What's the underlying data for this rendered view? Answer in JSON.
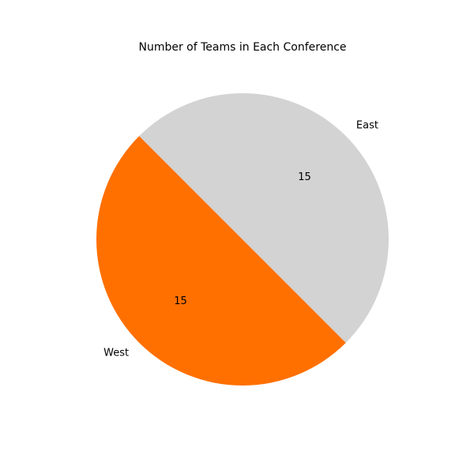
{
  "chart_data": {
    "type": "pie",
    "title": "Number of Teams in Each Conference",
    "categories": [
      "West",
      "East"
    ],
    "values": [
      15,
      15
    ],
    "value_labels": [
      "15",
      "15"
    ],
    "colors": [
      "#ff7000",
      "#d3d3d3"
    ],
    "legend": "none",
    "grid": false
  }
}
